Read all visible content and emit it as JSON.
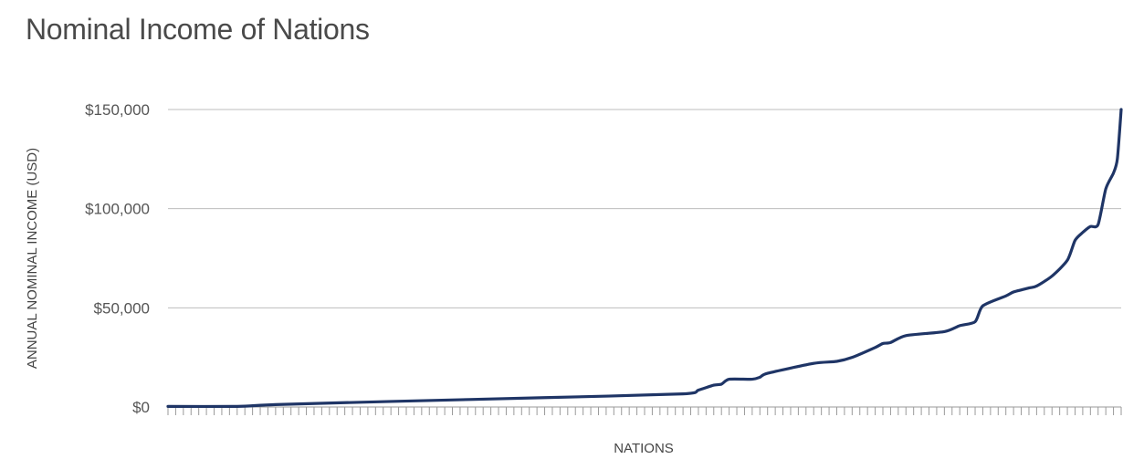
{
  "chart_data": {
    "type": "line",
    "title": "Nominal Income of Nations",
    "xlabel": "NATIONS",
    "ylabel": "ANNUAL NOMINAL INCOME (USD)",
    "ylim": [
      0,
      150000
    ],
    "yticks": [
      {
        "value": 0,
        "label": "$0"
      },
      {
        "value": 50000,
        "label": "$50,000"
      },
      {
        "value": 100000,
        "label": "$100,000"
      },
      {
        "value": 150000,
        "label": "$150,000"
      }
    ],
    "grid": true,
    "legend": "none",
    "x_count": 125,
    "series": [
      {
        "color": "#1f3566",
        "points": [
          [
            1,
            300
          ],
          [
            10,
            300
          ],
          [
            15,
            1200
          ],
          [
            30,
            2800
          ],
          [
            50,
            4700
          ],
          [
            68,
            6600
          ],
          [
            70,
            8500
          ],
          [
            72,
            11000
          ],
          [
            73,
            11500
          ],
          [
            74,
            14000
          ],
          [
            77,
            14000
          ],
          [
            78,
            15000
          ],
          [
            79,
            17000
          ],
          [
            85,
            22000
          ],
          [
            88,
            23000
          ],
          [
            90,
            25000
          ],
          [
            93,
            30000
          ],
          [
            94,
            32000
          ],
          [
            95,
            32500
          ],
          [
            97,
            36000
          ],
          [
            102,
            38000
          ],
          [
            104,
            41000
          ],
          [
            106,
            43000
          ],
          [
            107,
            51000
          ],
          [
            110,
            56000
          ],
          [
            111,
            58000
          ],
          [
            113,
            60000
          ],
          [
            114,
            61000
          ],
          [
            116,
            66000
          ],
          [
            118,
            74000
          ],
          [
            119,
            84000
          ],
          [
            120,
            88000
          ],
          [
            121,
            91000
          ],
          [
            122,
            92000
          ],
          [
            123,
            110000
          ],
          [
            124,
            118000
          ],
          [
            124.5,
            125000
          ],
          [
            125,
            150000
          ]
        ]
      }
    ]
  }
}
